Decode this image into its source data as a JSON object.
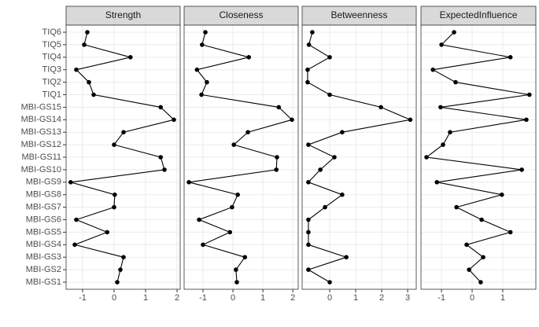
{
  "chart_data": {
    "type": "line",
    "categories": [
      "MBI-GS1",
      "MBI-GS2",
      "MBI-GS3",
      "MBI-GS4",
      "MBI-GS5",
      "MBI-GS6",
      "MBI-GS7",
      "MBI-GS8",
      "MBI-GS9",
      "MBI-GS10",
      "MBI-GS11",
      "MBI-GS12",
      "MBI-GS13",
      "MBI-GS14",
      "MBI-GS15",
      "TIQ1",
      "TIQ2",
      "TIQ3",
      "TIQ4",
      "TIQ5",
      "TIQ6"
    ],
    "grid": true,
    "series": [
      {
        "name": "Strength",
        "color": "#000000",
        "values": [
          0.1,
          0.2,
          0.3,
          -1.25,
          -0.22,
          -1.2,
          0.0,
          0.02,
          -1.38,
          1.6,
          1.48,
          0.0,
          0.3,
          1.9,
          1.48,
          -0.65,
          -0.8,
          -1.2,
          0.52,
          -0.95,
          -0.85
        ],
        "xlim": [
          -1.525,
          2.1
        ],
        "xticks": [
          -1,
          0,
          1,
          2
        ]
      },
      {
        "name": "Closeness",
        "color": "#000000",
        "values": [
          0.13,
          0.1,
          0.4,
          -1.0,
          -0.1,
          -1.13,
          -0.03,
          0.16,
          -1.47,
          1.45,
          1.47,
          0.03,
          0.5,
          1.97,
          1.53,
          -1.05,
          -0.87,
          -1.2,
          0.53,
          -1.03,
          -0.92
        ],
        "xlim": [
          -1.63,
          2.18
        ],
        "xticks": [
          -1,
          0,
          1,
          2
        ]
      },
      {
        "name": "Betweenness",
        "color": "#000000",
        "values": [
          0,
          -0.82,
          0.64,
          -0.82,
          -0.82,
          -0.82,
          -0.18,
          0.48,
          -0.82,
          -0.36,
          0.18,
          -0.82,
          0.48,
          3.1,
          1.97,
          0,
          -0.85,
          -0.85,
          0,
          -0.8,
          -0.67
        ],
        "xlim": [
          -1.06,
          3.33
        ],
        "xticks": [
          0,
          1,
          2,
          3
        ]
      },
      {
        "name": "ExpectedInfluence",
        "color": "#000000",
        "values": [
          0.28,
          -0.1,
          0.36,
          -0.18,
          1.25,
          0.31,
          -0.51,
          0.97,
          -1.15,
          1.62,
          -1.49,
          -0.95,
          -0.72,
          1.77,
          -1.03,
          1.87,
          -0.54,
          -1.28,
          1.25,
          -1.0,
          -0.59
        ],
        "xlim": [
          -1.67,
          2.08
        ],
        "xticks": [
          -1,
          0,
          1
        ]
      }
    ]
  }
}
